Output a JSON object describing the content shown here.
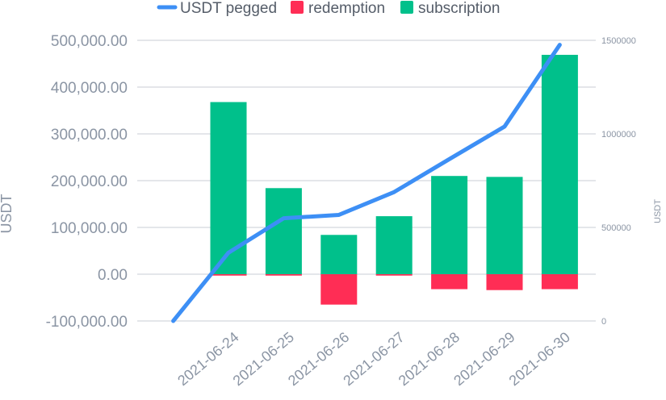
{
  "chart_data": {
    "type": "bar",
    "categories": [
      "2021-06-24",
      "2021-06-25",
      "2021-06-26",
      "2021-06-27",
      "2021-06-28",
      "2021-06-29",
      "2021-06-30"
    ],
    "series": [
      {
        "name": "subscription",
        "kind": "bar",
        "axis": "left",
        "color": "#00c08b",
        "values": [
          368000,
          184000,
          84000,
          124000,
          210000,
          208000,
          469000
        ]
      },
      {
        "name": "redemption",
        "kind": "bar",
        "axis": "left",
        "color": "#ff2d55",
        "values": [
          -3000,
          -3000,
          -65000,
          -3000,
          -32000,
          -34000,
          -32000
        ]
      },
      {
        "name": "USDT pegged",
        "kind": "line",
        "axis": "right",
        "color": "#3d8ff5",
        "x": [
          "",
          "2021-06-24",
          "2021-06-25",
          "2021-06-26",
          "2021-06-27",
          "2021-06-28",
          "2021-06-29",
          "2021-06-30"
        ],
        "values": [
          0,
          365000,
          549000,
          567000,
          689000,
          865000,
          1039000,
          1476000
        ]
      }
    ],
    "legend": [
      "USDT pegged",
      "redemption",
      "subscription"
    ],
    "legend_position": "top",
    "ylabel": "USDT",
    "ylabel_right": "USDT",
    "ylim": [
      -100000,
      500000
    ],
    "ylim_right": [
      0,
      1500000
    ],
    "yticks": [
      "500,000.00",
      "400,000.00",
      "300,000.00",
      "200,000.00",
      "100,000.00",
      "0.00",
      "-100,000.00"
    ],
    "yticks_right": [
      "1500000",
      "1000000",
      "500000",
      "0"
    ],
    "grid": true
  }
}
